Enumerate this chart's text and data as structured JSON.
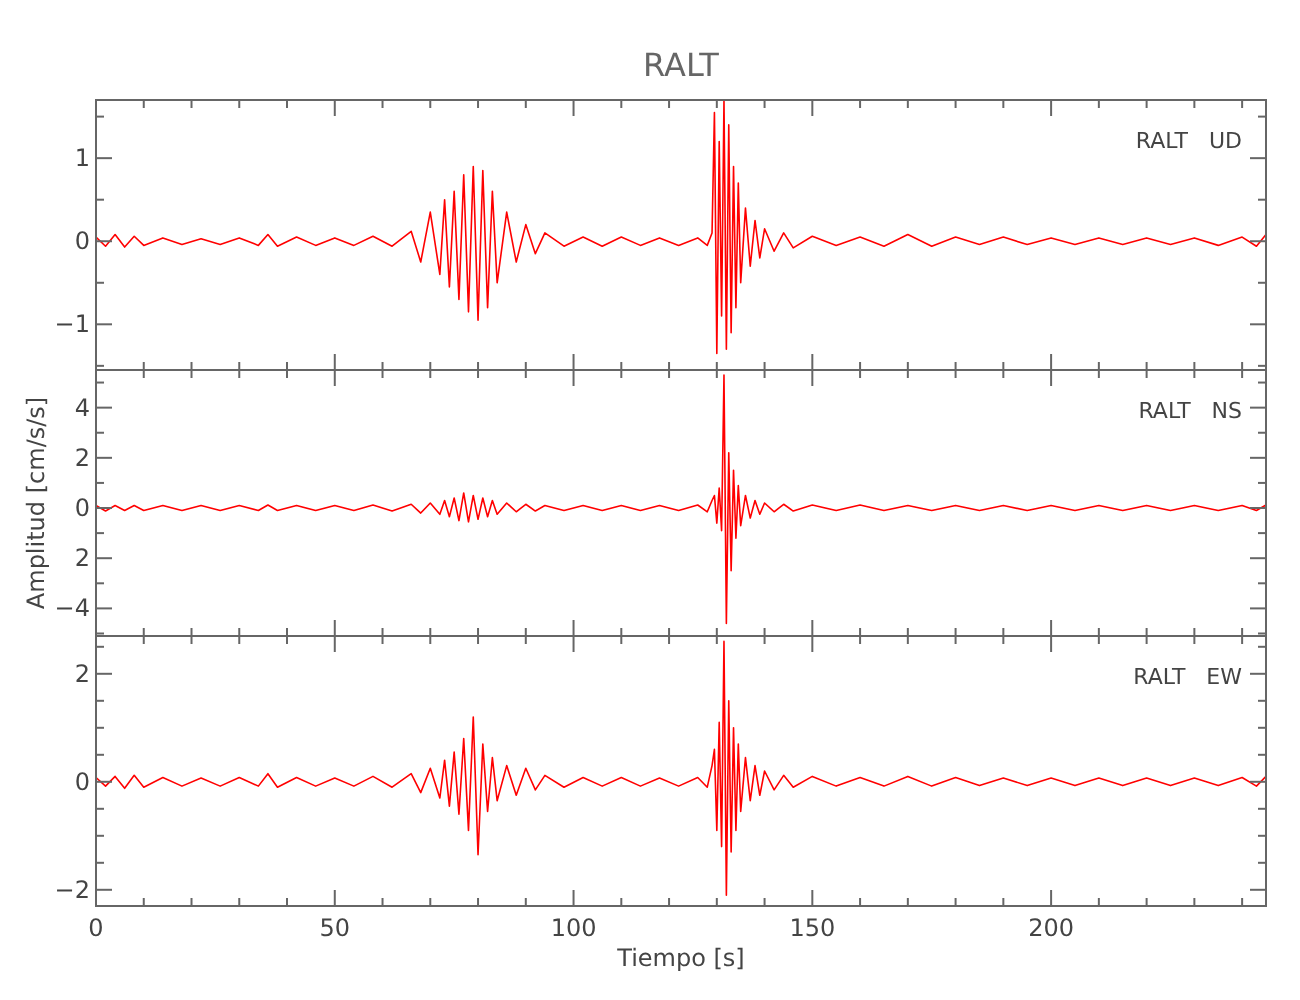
{
  "chart_data": [
    {
      "type": "line",
      "title": "RALT",
      "tick_labels": "y",
      "xlim": [
        0,
        245
      ],
      "ylim": [
        -1.55,
        1.7
      ],
      "xticks": [
        0,
        {
          "value": 10,
          "label": null
        },
        {
          "value": 20,
          "label": null
        },
        {
          "value": 30,
          "label": null
        },
        {
          "value": 40,
          "label": null
        },
        50,
        {
          "value": 60,
          "label": null
        },
        {
          "value": 70,
          "label": null
        },
        {
          "value": 80,
          "label": null
        },
        {
          "value": 90,
          "label": null
        },
        100,
        {
          "value": 110,
          "label": null
        },
        {
          "value": 120,
          "label": null
        },
        {
          "value": 130,
          "label": null
        },
        {
          "value": 140,
          "label": null
        },
        150,
        {
          "value": 160,
          "label": null
        },
        {
          "value": 170,
          "label": null
        },
        {
          "value": 180,
          "label": null
        },
        {
          "value": 190,
          "label": null
        },
        200,
        {
          "value": 210,
          "label": null
        },
        {
          "value": 220,
          "label": null
        },
        {
          "value": 230,
          "label": null
        },
        {
          "value": 240,
          "label": null
        }
      ],
      "yticks": [
        {
          "value": -1.5,
          "label": null
        },
        {
          "value": -1,
          "label": "−1"
        },
        {
          "value": -0.5,
          "label": null
        },
        0,
        {
          "value": 0.5,
          "label": null
        },
        1,
        {
          "value": 1.5,
          "label": null
        }
      ],
      "x": [
        0,
        2,
        4,
        6,
        8,
        10,
        14,
        18,
        22,
        26,
        30,
        34,
        36,
        38,
        42,
        46,
        50,
        54,
        58,
        62,
        66,
        68,
        70,
        72,
        73,
        74,
        75,
        76,
        77,
        78,
        79,
        80,
        81,
        82,
        83,
        84,
        86,
        88,
        90,
        92,
        94,
        98,
        102,
        106,
        110,
        114,
        118,
        122,
        126,
        128,
        129,
        129.5,
        130,
        130.5,
        131,
        131.5,
        132,
        132.5,
        133,
        133.5,
        134,
        134.5,
        135,
        136,
        137,
        138,
        139,
        140,
        142,
        144,
        146,
        150,
        155,
        160,
        165,
        170,
        175,
        180,
        185,
        190,
        195,
        200,
        205,
        210,
        215,
        220,
        225,
        230,
        235,
        240,
        243,
        245
      ],
      "series": [
        {
          "name": "RALT   UD",
          "color": "#ff0000",
          "values": [
            0.05,
            -0.06,
            0.08,
            -0.07,
            0.06,
            -0.05,
            0.04,
            -0.04,
            0.03,
            -0.04,
            0.04,
            -0.05,
            0.08,
            -0.06,
            0.05,
            -0.05,
            0.04,
            -0.05,
            0.06,
            -0.06,
            0.12,
            -0.25,
            0.35,
            -0.4,
            0.5,
            -0.55,
            0.6,
            -0.7,
            0.8,
            -0.85,
            0.9,
            -0.95,
            0.85,
            -0.8,
            0.6,
            -0.5,
            0.35,
            -0.25,
            0.2,
            -0.15,
            0.1,
            -0.06,
            0.05,
            -0.06,
            0.05,
            -0.05,
            0.04,
            -0.05,
            0.04,
            -0.05,
            0.1,
            1.55,
            -1.35,
            1.2,
            -0.9,
            1.7,
            -1.3,
            1.4,
            -1.1,
            0.9,
            -0.8,
            0.7,
            -0.5,
            0.4,
            -0.3,
            0.25,
            -0.2,
            0.15,
            -0.12,
            0.1,
            -0.08,
            0.06,
            -0.05,
            0.05,
            -0.06,
            0.08,
            -0.06,
            0.05,
            -0.04,
            0.05,
            -0.04,
            0.04,
            -0.04,
            0.04,
            -0.04,
            0.04,
            -0.04,
            0.04,
            -0.05,
            0.05,
            -0.06,
            0.08
          ]
        }
      ]
    },
    {
      "type": "line",
      "ylabel": "Amplitud [cm/s/s]",
      "tick_labels": "y",
      "xlim": [
        0,
        245
      ],
      "ylim": [
        -5.1,
        5.5
      ],
      "xticks": [
        0,
        {
          "value": 10,
          "label": null
        },
        {
          "value": 20,
          "label": null
        },
        {
          "value": 30,
          "label": null
        },
        {
          "value": 40,
          "label": null
        },
        50,
        {
          "value": 60,
          "label": null
        },
        {
          "value": 70,
          "label": null
        },
        {
          "value": 80,
          "label": null
        },
        {
          "value": 90,
          "label": null
        },
        100,
        {
          "value": 110,
          "label": null
        },
        {
          "value": 120,
          "label": null
        },
        {
          "value": 130,
          "label": null
        },
        {
          "value": 140,
          "label": null
        },
        150,
        {
          "value": 160,
          "label": null
        },
        {
          "value": 170,
          "label": null
        },
        {
          "value": 180,
          "label": null
        },
        {
          "value": 190,
          "label": null
        },
        200,
        {
          "value": 210,
          "label": null
        },
        {
          "value": 220,
          "label": null
        },
        {
          "value": 230,
          "label": null
        },
        {
          "value": 240,
          "label": null
        }
      ],
      "yticks": [
        {
          "value": -5,
          "label": null
        },
        {
          "value": -4,
          "label": "−4"
        },
        {
          "value": -3,
          "label": null
        },
        {
          "value": -2,
          "label": "2"
        },
        {
          "value": -1,
          "label": null
        },
        0,
        {
          "value": 1,
          "label": null
        },
        2,
        {
          "value": 3,
          "label": null
        },
        4,
        {
          "value": 5,
          "label": null
        }
      ],
      "x": [
        0,
        2,
        4,
        6,
        8,
        10,
        14,
        18,
        22,
        26,
        30,
        34,
        36,
        38,
        42,
        46,
        50,
        54,
        58,
        62,
        66,
        68,
        70,
        72,
        73,
        74,
        75,
        76,
        77,
        78,
        79,
        80,
        81,
        82,
        83,
        84,
        86,
        88,
        90,
        92,
        94,
        98,
        102,
        106,
        110,
        114,
        118,
        122,
        126,
        128,
        129,
        129.5,
        130,
        130.5,
        131,
        131.5,
        132,
        132.5,
        133,
        133.5,
        134,
        134.5,
        135,
        136,
        137,
        138,
        139,
        140,
        142,
        144,
        146,
        150,
        155,
        160,
        165,
        170,
        175,
        180,
        185,
        190,
        195,
        200,
        205,
        210,
        215,
        220,
        225,
        230,
        235,
        240,
        243,
        245
      ],
      "series": [
        {
          "name": "RALT   NS",
          "color": "#ff0000",
          "values": [
            0.1,
            -0.12,
            0.1,
            -0.1,
            0.1,
            -0.1,
            0.1,
            -0.1,
            0.1,
            -0.1,
            0.1,
            -0.1,
            0.12,
            -0.1,
            0.1,
            -0.1,
            0.1,
            -0.1,
            0.12,
            -0.12,
            0.15,
            -0.2,
            0.2,
            -0.25,
            0.3,
            -0.35,
            0.4,
            -0.5,
            0.6,
            -0.55,
            0.5,
            -0.45,
            0.4,
            -0.35,
            0.3,
            -0.25,
            0.2,
            -0.15,
            0.15,
            -0.12,
            0.1,
            -0.1,
            0.1,
            -0.1,
            0.1,
            -0.1,
            0.1,
            -0.1,
            0.12,
            -0.15,
            0.3,
            0.5,
            -0.6,
            0.8,
            -0.9,
            5.3,
            -4.6,
            2.2,
            -2.5,
            1.5,
            -1.2,
            0.9,
            -0.7,
            0.5,
            -0.4,
            0.3,
            -0.25,
            0.2,
            -0.15,
            0.15,
            -0.12,
            0.12,
            -0.1,
            0.12,
            -0.1,
            0.1,
            -0.1,
            0.1,
            -0.1,
            0.1,
            -0.1,
            0.1,
            -0.1,
            0.1,
            -0.1,
            0.1,
            -0.1,
            0.1,
            -0.1,
            0.1,
            -0.1,
            0.12
          ]
        }
      ]
    },
    {
      "type": "line",
      "xlabel": "Tiempo [s]",
      "xlim": [
        0,
        245
      ],
      "ylim": [
        -2.3,
        2.7
      ],
      "xticks": [
        0,
        {
          "value": 10,
          "label": null
        },
        {
          "value": 20,
          "label": null
        },
        {
          "value": 30,
          "label": null
        },
        {
          "value": 40,
          "label": null
        },
        50,
        {
          "value": 60,
          "label": null
        },
        {
          "value": 70,
          "label": null
        },
        {
          "value": 80,
          "label": null
        },
        {
          "value": 90,
          "label": null
        },
        100,
        {
          "value": 110,
          "label": null
        },
        {
          "value": 120,
          "label": null
        },
        {
          "value": 130,
          "label": null
        },
        {
          "value": 140,
          "label": null
        },
        150,
        {
          "value": 160,
          "label": null
        },
        {
          "value": 170,
          "label": null
        },
        {
          "value": 180,
          "label": null
        },
        {
          "value": 190,
          "label": null
        },
        200,
        {
          "value": 210,
          "label": null
        },
        {
          "value": 220,
          "label": null
        },
        {
          "value": 230,
          "label": null
        },
        {
          "value": 240,
          "label": null
        }
      ],
      "yticks": [
        {
          "value": -2,
          "label": "−2"
        },
        {
          "value": -1.5,
          "label": null
        },
        {
          "value": -1,
          "label": null
        },
        {
          "value": -0.5,
          "label": null
        },
        0,
        {
          "value": 0.5,
          "label": null
        },
        {
          "value": 1,
          "label": null
        },
        {
          "value": 1.5,
          "label": null
        },
        2,
        {
          "value": 2.5,
          "label": null
        }
      ],
      "x": [
        0,
        2,
        4,
        6,
        8,
        10,
        14,
        18,
        22,
        26,
        30,
        34,
        36,
        38,
        42,
        46,
        50,
        54,
        58,
        62,
        66,
        68,
        70,
        72,
        73,
        74,
        75,
        76,
        77,
        78,
        79,
        80,
        81,
        82,
        83,
        84,
        86,
        88,
        90,
        92,
        94,
        98,
        102,
        106,
        110,
        114,
        118,
        122,
        126,
        128,
        129,
        129.5,
        130,
        130.5,
        131,
        131.5,
        132,
        132.5,
        133,
        133.5,
        134,
        134.5,
        135,
        136,
        137,
        138,
        139,
        140,
        142,
        144,
        146,
        150,
        155,
        160,
        165,
        170,
        175,
        180,
        185,
        190,
        195,
        200,
        205,
        210,
        215,
        220,
        225,
        230,
        235,
        240,
        243,
        245
      ],
      "series": [
        {
          "name": "RALT   EW",
          "color": "#ff0000",
          "values": [
            0.08,
            -0.08,
            0.1,
            -0.12,
            0.12,
            -0.1,
            0.08,
            -0.08,
            0.07,
            -0.08,
            0.08,
            -0.08,
            0.15,
            -0.1,
            0.08,
            -0.08,
            0.07,
            -0.08,
            0.1,
            -0.1,
            0.15,
            -0.2,
            0.25,
            -0.3,
            0.4,
            -0.45,
            0.55,
            -0.6,
            0.8,
            -0.9,
            1.2,
            -1.35,
            0.7,
            -0.55,
            0.45,
            -0.35,
            0.3,
            -0.25,
            0.25,
            -0.15,
            0.12,
            -0.1,
            0.08,
            -0.08,
            0.08,
            -0.08,
            0.07,
            -0.08,
            0.08,
            -0.1,
            0.3,
            0.6,
            -0.9,
            1.1,
            -1.2,
            2.6,
            -2.1,
            1.5,
            -1.3,
            1.0,
            -0.9,
            0.7,
            -0.55,
            0.45,
            -0.35,
            0.3,
            -0.25,
            0.2,
            -0.15,
            0.12,
            -0.1,
            0.1,
            -0.08,
            0.08,
            -0.08,
            0.1,
            -0.08,
            0.08,
            -0.07,
            0.07,
            -0.07,
            0.07,
            -0.07,
            0.07,
            -0.07,
            0.07,
            -0.07,
            0.07,
            -0.07,
            0.08,
            -0.08,
            0.1
          ]
        }
      ]
    }
  ]
}
